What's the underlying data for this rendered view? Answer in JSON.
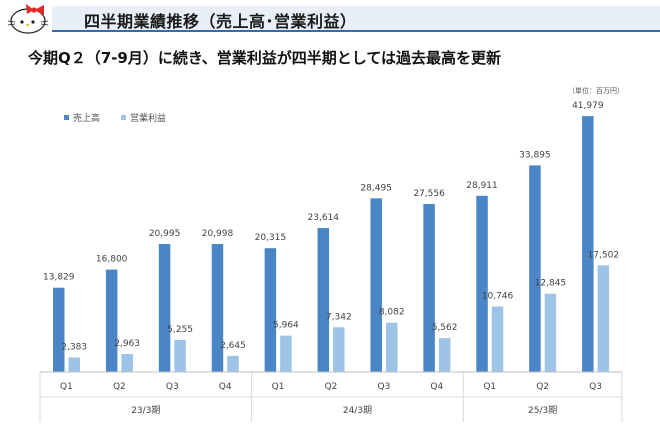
{
  "header": {
    "title": "四半期業績推移（売上高･営業利益）"
  },
  "headline": "今期Q２（7-9月）に続き、営業利益が四半期としては過去最高を更新",
  "unit": "（単位：百万円）",
  "colors": {
    "sales": "#4a86c5",
    "profit": "#9dc3e6",
    "header_bg": "#e8eff8",
    "header_line": "#2f6eb5"
  },
  "chart_data": {
    "type": "bar",
    "legend_position": "top-left",
    "grid": false,
    "categories": [
      "Q1",
      "Q2",
      "Q3",
      "Q4",
      "Q1",
      "Q2",
      "Q3",
      "Q4",
      "Q1",
      "Q2",
      "Q3"
    ],
    "groups": [
      {
        "label": "23/3期",
        "count": 4
      },
      {
        "label": "24/3期",
        "count": 4
      },
      {
        "label": "25/3期",
        "count": 3
      }
    ],
    "series": [
      {
        "name": "売上高",
        "values": [
          13829,
          16800,
          20995,
          20998,
          20315,
          23614,
          28495,
          27556,
          28911,
          33895,
          41979
        ]
      },
      {
        "name": "営業利益",
        "values": [
          2383,
          2963,
          5255,
          2645,
          5964,
          7342,
          8082,
          5562,
          10746,
          12845,
          17502
        ]
      }
    ],
    "data_labels": {
      "sales": [
        "13,829",
        "16,800",
        "20,995",
        "20,998",
        "20,315",
        "23,614",
        "28,495",
        "27,556",
        "28,911",
        "33,895",
        "41,979"
      ],
      "profit": [
        "2,383",
        "2,963",
        "5,255",
        "2,645",
        "5,964",
        "7,342",
        "8,082",
        "5,562",
        "10,746",
        "12,845",
        "17,502"
      ]
    },
    "ylim": [
      0,
      45000
    ]
  }
}
